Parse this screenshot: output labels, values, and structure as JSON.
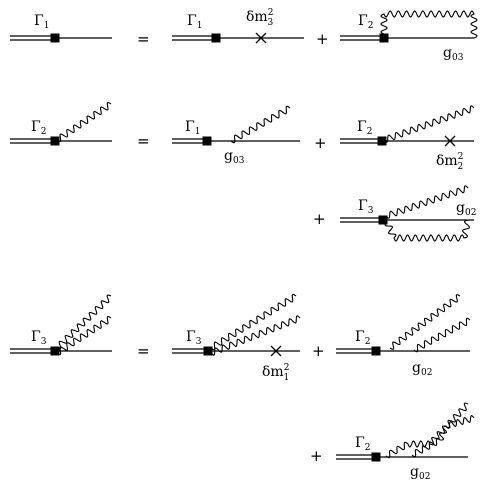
{
  "equations": [
    {
      "lhs": {
        "vertex": "Γ",
        "vertex_sub": "1"
      },
      "terms": [
        {
          "vertex": "Γ",
          "vertex_sub": "1",
          "mass": "δm",
          "mass_sup": "2",
          "mass_sub": "3"
        },
        {
          "vertex": "Γ",
          "vertex_sub": "2",
          "coupling": "g",
          "coupling_sub": "03"
        }
      ]
    },
    {
      "lhs": {
        "vertex": "Γ",
        "vertex_sub": "2"
      },
      "terms": [
        {
          "vertex": "Γ",
          "vertex_sub": "1",
          "coupling": "g",
          "coupling_sub": "03"
        },
        {
          "vertex": "Γ",
          "vertex_sub": "2",
          "mass": "δm",
          "mass_sup": "2",
          "mass_sub": "2"
        },
        {
          "vertex": "Γ",
          "vertex_sub": "3",
          "coupling": "g",
          "coupling_sub": "02"
        }
      ]
    },
    {
      "lhs": {
        "vertex": "Γ",
        "vertex_sub": "3"
      },
      "terms": [
        {
          "vertex": "Γ",
          "vertex_sub": "3",
          "mass": "δm",
          "mass_sup": "2",
          "mass_sub": "1"
        },
        {
          "vertex": "Γ",
          "vertex_sub": "2",
          "coupling": "g",
          "coupling_sub": "02"
        },
        {
          "vertex": "Γ",
          "vertex_sub": "2",
          "coupling": "g",
          "coupling_sub": "02"
        }
      ]
    }
  ],
  "symbols": {
    "equals": "=",
    "plus": "+"
  }
}
